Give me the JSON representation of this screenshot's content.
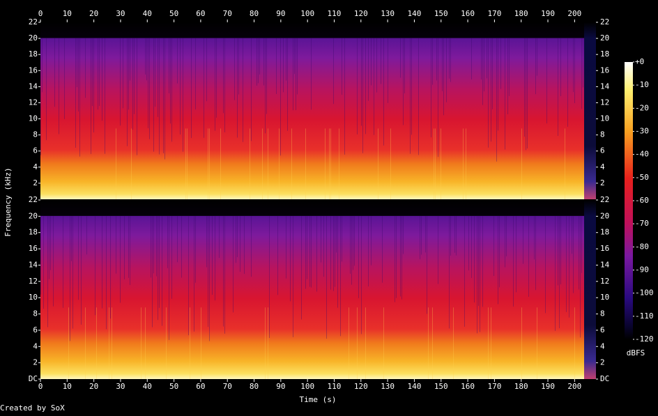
{
  "chart_data": {
    "type": "spectrogram",
    "x_label": "Time (s)",
    "y_label": "Frequency (kHz)",
    "xlim": [
      0,
      208
    ],
    "xticks": [
      0,
      10,
      20,
      30,
      40,
      50,
      60,
      70,
      80,
      90,
      100,
      110,
      120,
      130,
      140,
      150,
      160,
      170,
      180,
      190,
      200
    ],
    "panels": [
      {
        "ylim": [
          0,
          22
        ],
        "yticks": [
          2,
          4,
          6,
          8,
          10,
          12,
          14,
          16,
          18,
          20,
          22
        ]
      },
      {
        "ylim": [
          0,
          22
        ],
        "yticks": [
          {
            "value": 0,
            "label": "DC"
          },
          2,
          4,
          6,
          8,
          10,
          12,
          14,
          16,
          18,
          20,
          22
        ]
      }
    ],
    "colorbar": {
      "label": "dBFS",
      "lim": [
        -120,
        0
      ],
      "ticks": [
        {
          "value": 0,
          "label": "+0"
        },
        -10,
        -20,
        -30,
        -40,
        -50,
        -60,
        -70,
        -80,
        -90,
        -100,
        -110,
        -120
      ]
    },
    "credit": "Created by SoX"
  }
}
